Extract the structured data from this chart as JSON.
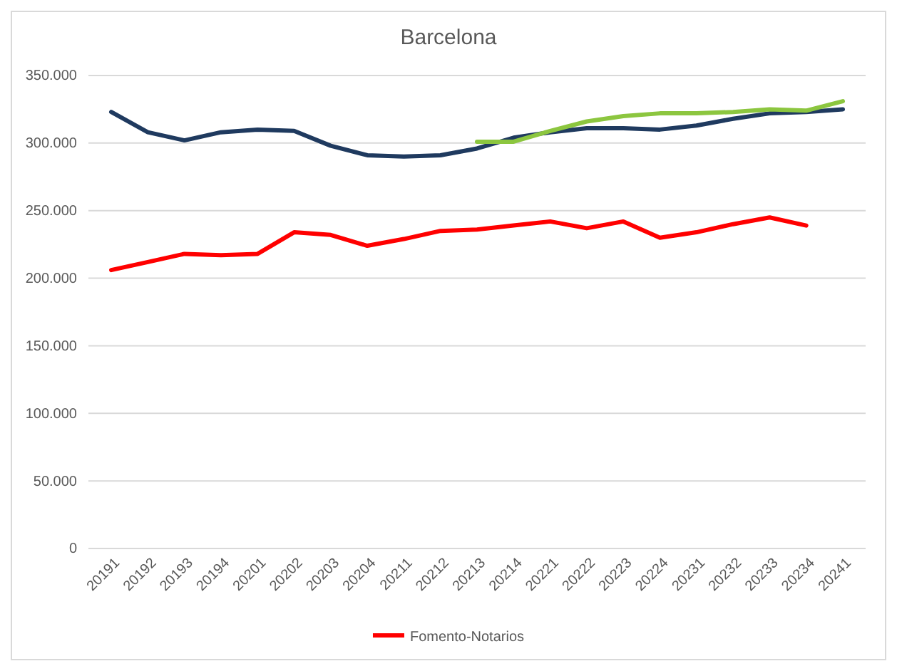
{
  "chart_data": {
    "type": "line",
    "title": "Barcelona",
    "categories": [
      "20191",
      "20192",
      "20193",
      "20194",
      "20201",
      "20202",
      "20203",
      "20204",
      "20211",
      "20212",
      "20213",
      "20214",
      "20221",
      "20222",
      "20223",
      "20224",
      "20231",
      "20232",
      "20233",
      "20234",
      "20241"
    ],
    "series": [
      {
        "name": "Fomento-Notarios",
        "color": "#ff0000",
        "values": [
          206000,
          212000,
          218000,
          217000,
          218000,
          234000,
          232000,
          224000,
          229000,
          235000,
          236000,
          239000,
          242000,
          237000,
          242000,
          230000,
          234000,
          240000,
          245000,
          239000,
          null
        ]
      },
      {
        "color": "#1f3a5f",
        "values": [
          323000,
          308000,
          302000,
          308000,
          310000,
          309000,
          298000,
          291000,
          290000,
          291000,
          296000,
          304000,
          308000,
          311000,
          311000,
          310000,
          313000,
          318000,
          322000,
          323000,
          325000
        ]
      },
      {
        "color": "#8cc63f",
        "values": [
          null,
          null,
          null,
          null,
          null,
          null,
          null,
          null,
          null,
          null,
          301000,
          301000,
          309000,
          316000,
          320000,
          322000,
          322000,
          323000,
          325000,
          324000,
          331000
        ]
      }
    ],
    "ylim": [
      0,
      350000
    ],
    "yticks": [
      {
        "value": 0,
        "label": "0"
      },
      {
        "value": 50000,
        "label": "50.000"
      },
      {
        "value": 100000,
        "label": "100.000"
      },
      {
        "value": 150000,
        "label": "150.000"
      },
      {
        "value": 200000,
        "label": "200.000"
      },
      {
        "value": 250000,
        "label": "250.000"
      },
      {
        "value": 300000,
        "label": "300.000"
      },
      {
        "value": 350000,
        "label": "350.000"
      }
    ],
    "grid": "y",
    "legend": "bottom",
    "marker": "none",
    "line_style": "solid"
  }
}
